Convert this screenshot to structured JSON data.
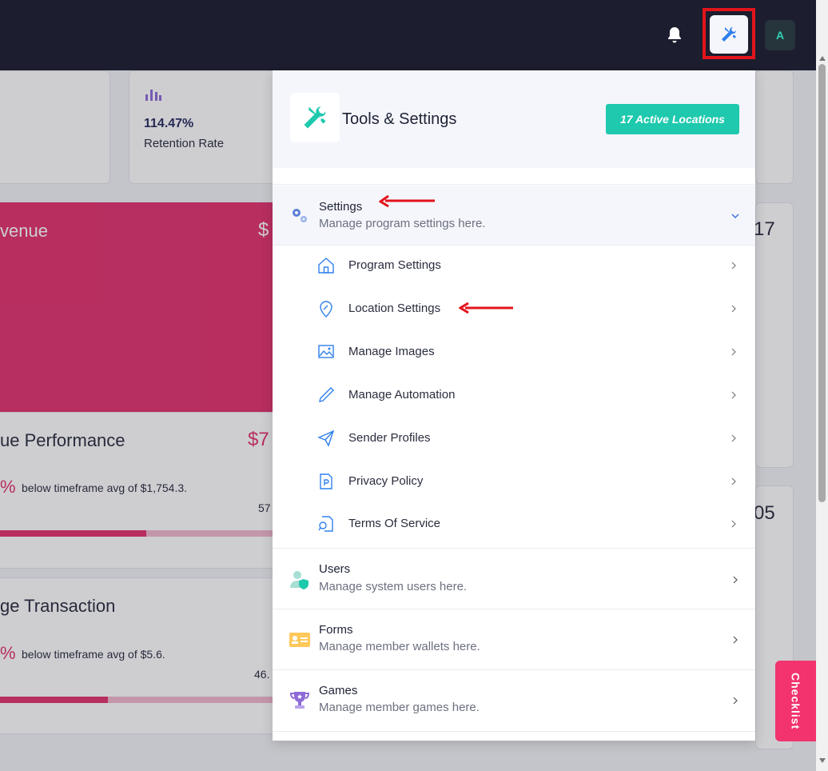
{
  "topbar": {
    "avatar_letter": "A"
  },
  "background": {
    "stat_value": "114.47%",
    "stat_label": "Retention Rate",
    "revenue_title": "venue",
    "revenue_dollar": "$",
    "right_num_1": "17",
    "performance_title": "ue Performance",
    "performance_value": "$7",
    "performance_pct": "%",
    "performance_sub": "below timeframe avg of $1,754.3.",
    "performance_small": "57",
    "performance_bar_fraction": 0.53,
    "right_num_2": "05",
    "transaction_title": "ge Transaction",
    "transaction_pct": "%",
    "transaction_sub": "below timeframe avg of $5.6.",
    "transaction_small": "46.",
    "transaction_bar_fraction": 0.39
  },
  "panel": {
    "title": "Tools & Settings",
    "badge": "17 Active Locations",
    "sections": {
      "settings": {
        "title": "Settings",
        "subtitle": "Manage program settings here."
      },
      "users": {
        "title": "Users",
        "subtitle": "Manage system users here."
      },
      "forms": {
        "title": "Forms",
        "subtitle": "Manage member wallets here."
      },
      "games": {
        "title": "Games",
        "subtitle": "Manage member games here."
      }
    },
    "settings_items": [
      {
        "label": "Program Settings",
        "icon": "home-icon"
      },
      {
        "label": "Location Settings",
        "icon": "location-pin-icon"
      },
      {
        "label": "Manage Images",
        "icon": "image-icon"
      },
      {
        "label": "Manage Automation",
        "icon": "pencil-icon"
      },
      {
        "label": "Sender Profiles",
        "icon": "paper-plane-icon"
      },
      {
        "label": "Privacy Policy",
        "icon": "document-p-icon"
      },
      {
        "label": "Terms Of Service",
        "icon": "document-search-icon"
      }
    ]
  },
  "checklist_label": "Checklist",
  "colors": {
    "topbar": "#1c1d2e",
    "accent_teal": "#1ec9ad",
    "accent_pink": "#e2336e",
    "highlight_red": "#e3141c",
    "icon_blue": "#2f80ed"
  }
}
